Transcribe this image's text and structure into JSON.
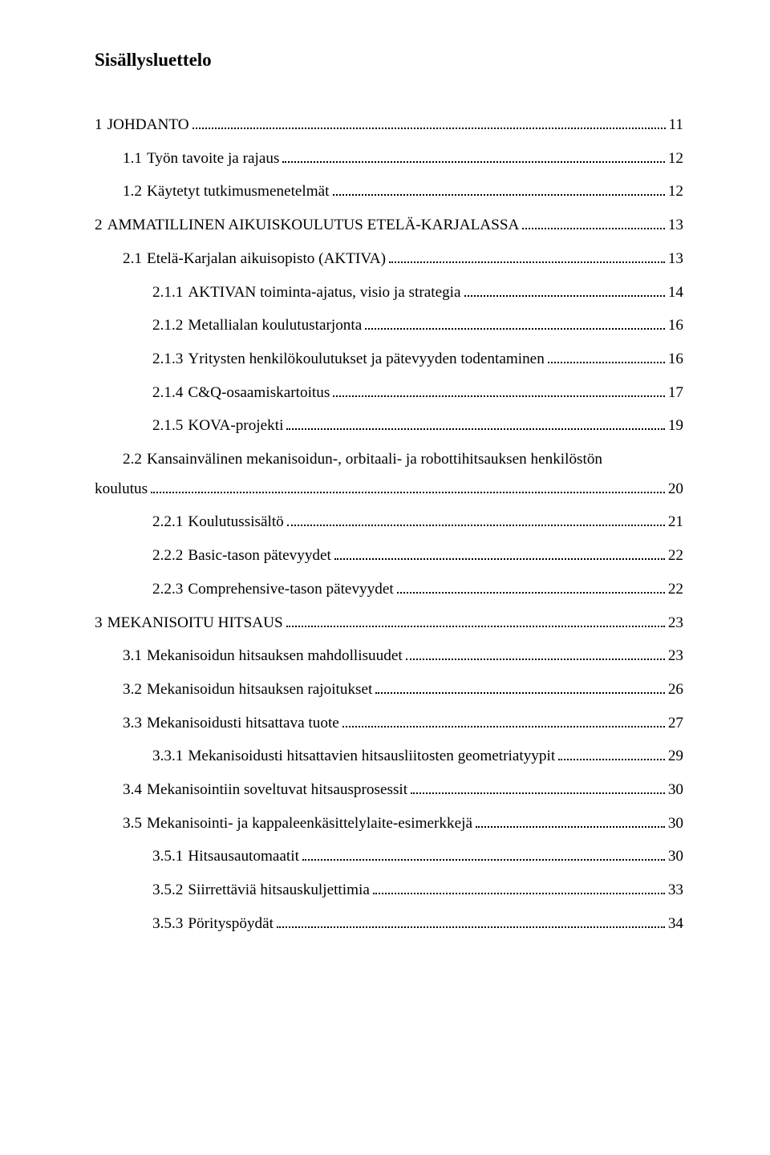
{
  "title": "Sisällysluettelo",
  "entries": [
    {
      "level": 1,
      "num": "1",
      "label": "JOHDANTO",
      "page": "11"
    },
    {
      "level": 2,
      "num": "1.1",
      "label": "Työn tavoite ja rajaus",
      "page": "12"
    },
    {
      "level": 2,
      "num": "1.2",
      "label": "Käytetyt tutkimusmenetelmät",
      "page": "12"
    },
    {
      "level": 1,
      "num": "2",
      "label": "AMMATILLINEN AIKUISKOULUTUS ETELÄ-KARJALASSA",
      "page": "13"
    },
    {
      "level": 2,
      "num": "2.1",
      "label": "Etelä-Karjalan aikuisopisto (AKTIVA)",
      "page": "13"
    },
    {
      "level": 3,
      "num": "2.1.1",
      "label": "AKTIVAN toiminta-ajatus, visio ja strategia",
      "page": "14"
    },
    {
      "level": 3,
      "num": "2.1.2",
      "label": "Metallialan koulutustarjonta",
      "page": "16"
    },
    {
      "level": 3,
      "num": "2.1.3",
      "label": "Yritysten henkilökoulutukset ja pätevyyden todentaminen",
      "page": "16"
    },
    {
      "level": 3,
      "num": "2.1.4",
      "label": "C&Q-osaamiskartoitus",
      "page": "17"
    },
    {
      "level": 3,
      "num": "2.1.5",
      "label": "KOVA-projekti",
      "page": "19"
    },
    {
      "level": 2,
      "num": "2.2",
      "label_line1": "Kansainvälinen   mekanisoidun-,   orbitaali-   ja   robottihitsauksen   henkilöstön",
      "label_line2": "koulutus",
      "page": "20",
      "wrap": true
    },
    {
      "level": 3,
      "num": "2.2.1",
      "label": "Koulutussisältö",
      "page": "21"
    },
    {
      "level": 3,
      "num": "2.2.2",
      "label": "Basic-tason pätevyydet",
      "page": "22"
    },
    {
      "level": 3,
      "num": "2.2.3",
      "label": "Comprehensive-tason pätevyydet",
      "page": "22"
    },
    {
      "level": 1,
      "num": "3",
      "label": "MEKANISOITU HITSAUS",
      "page": "23"
    },
    {
      "level": 2,
      "num": "3.1",
      "label": "Mekanisoidun hitsauksen mahdollisuudet",
      "page": "23"
    },
    {
      "level": 2,
      "num": "3.2",
      "label": "Mekanisoidun hitsauksen rajoitukset",
      "page": "26"
    },
    {
      "level": 2,
      "num": "3.3",
      "label": "Mekanisoidusti hitsattava tuote",
      "page": "27"
    },
    {
      "level": 3,
      "num": "3.3.1",
      "label": "Mekanisoidusti hitsattavien hitsausliitosten geometriatyypit",
      "page": "29"
    },
    {
      "level": 2,
      "num": "3.4",
      "label": "Mekanisointiin soveltuvat hitsausprosessit",
      "page": "30"
    },
    {
      "level": 2,
      "num": "3.5",
      "label": "Mekanisointi- ja kappaleenkäsittelylaite-esimerkkejä",
      "page": "30"
    },
    {
      "level": 3,
      "num": "3.5.1",
      "label": "Hitsausautomaatit",
      "page": "30"
    },
    {
      "level": 3,
      "num": "3.5.2",
      "label": "Siirrettäviä hitsauskuljettimia",
      "page": "33"
    },
    {
      "level": 3,
      "num": "3.5.3",
      "label": "Pörityspöydät",
      "page": "34"
    }
  ]
}
